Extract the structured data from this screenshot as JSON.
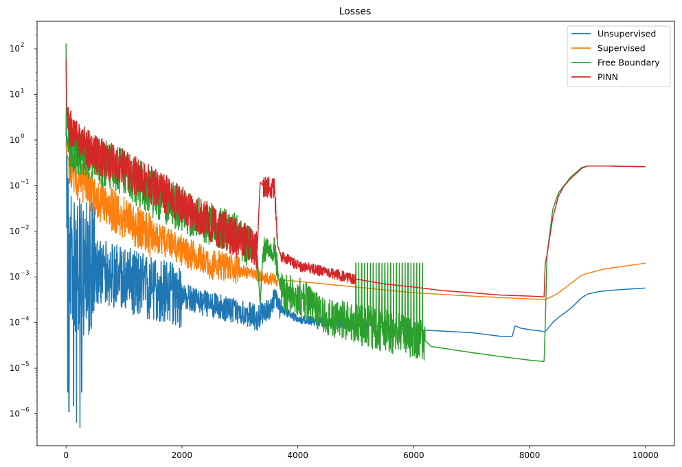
{
  "chart_data": {
    "type": "line",
    "title": "Losses",
    "xlabel": "",
    "ylabel": "",
    "xlim": [
      -500,
      10500
    ],
    "ylim": [
      2e-07,
      400
    ],
    "yscale": "log",
    "x_ticks": [
      0,
      2000,
      4000,
      6000,
      8000,
      10000
    ],
    "x_tick_labels": [
      "0",
      "2000",
      "4000",
      "6000",
      "8000",
      "10000"
    ],
    "y_ticks": [
      1e-06,
      1e-05,
      0.0001,
      0.001,
      0.01,
      0.1,
      1,
      10,
      100
    ],
    "y_tick_labels": [
      {
        "base": "10",
        "exp": "−6"
      },
      {
        "base": "10",
        "exp": "−5"
      },
      {
        "base": "10",
        "exp": "−4"
      },
      {
        "base": "10",
        "exp": "−3"
      },
      {
        "base": "10",
        "exp": "−2"
      },
      {
        "base": "10",
        "exp": "−1"
      },
      {
        "base": "10",
        "exp": "0"
      },
      {
        "base": "10",
        "exp": "1"
      },
      {
        "base": "10",
        "exp": "2"
      }
    ],
    "grid": false,
    "legend_position": "top-right",
    "series": [
      {
        "name": "Unsupervised",
        "color": "#1f77b4",
        "x": [
          0,
          10,
          30,
          60,
          100,
          200,
          300,
          500,
          800,
          1000,
          1500,
          2000,
          2500,
          3000,
          3300,
          3350,
          3500,
          3600,
          3700,
          4000,
          4500,
          5000,
          5500,
          6000,
          6500,
          7000,
          7500,
          7700,
          7750,
          7800,
          7850,
          8000,
          8200,
          8250,
          8270,
          8300,
          8400,
          8500,
          8700,
          8900,
          9000,
          9200,
          9500,
          9800,
          10000
        ],
        "y": [
          0.45,
          0.05,
          0.01,
          0.005,
          0.003,
          0.002,
          0.0018,
          0.0015,
          0.0012,
          0.001,
          0.0006,
          0.0004,
          0.00025,
          0.00018,
          0.00013,
          0.00015,
          0.0002,
          0.00035,
          0.0002,
          0.00012,
          0.0001,
          9e-05,
          8e-05,
          7e-05,
          6.5e-05,
          6e-05,
          5e-05,
          5e-05,
          8.5e-05,
          8e-05,
          7.5e-05,
          7e-05,
          6.5e-05,
          6.2e-05,
          6.5e-05,
          7e-05,
          0.0001,
          0.00013,
          0.0002,
          0.00035,
          0.00042,
          0.00048,
          0.00052,
          0.00055,
          0.00057
        ],
        "noise": {
          "ranges": [
            [
              0,
              500,
              3.2
            ],
            [
              500,
              2000,
              1.5
            ],
            [
              2000,
              3400,
              0.6
            ],
            [
              3400,
              3700,
              0.5
            ],
            [
              3700,
              5200,
              0.2
            ]
          ],
          "dips": [
            [
              30,
              3e-06
            ],
            [
              50,
              1.1e-06
            ],
            [
              130,
              1.5e-06
            ],
            [
              180,
              6.5e-07
            ],
            [
              240,
              5e-07
            ],
            [
              270,
              3e-06
            ]
          ]
        }
      },
      {
        "name": "Supervised",
        "color": "#ff7f0e",
        "x": [
          0,
          10,
          50,
          100,
          200,
          500,
          1000,
          1500,
          2000,
          2500,
          3000,
          3400,
          3600,
          3700,
          4000,
          5000,
          6000,
          7000,
          8000,
          8250,
          8300,
          8400,
          8500,
          8700,
          8900,
          9000,
          9300,
          9600,
          10000
        ],
        "y": [
          0.9,
          0.5,
          0.35,
          0.25,
          0.15,
          0.06,
          0.02,
          0.008,
          0.004,
          0.002,
          0.0014,
          0.001,
          0.0009,
          0.00085,
          0.0008,
          0.0006,
          0.00045,
          0.00038,
          0.00033,
          0.00032,
          0.00033,
          0.00038,
          0.00045,
          0.0007,
          0.0011,
          0.0012,
          0.0015,
          0.0017,
          0.002
        ],
        "noise": {
          "ranges": [
            [
              50,
              1500,
              1.0
            ],
            [
              1500,
              3000,
              0.7
            ],
            [
              3000,
              3650,
              0.3
            ]
          ],
          "dips": []
        }
      },
      {
        "name": "Free Boundary",
        "color": "#2ca02c",
        "x": [
          0,
          10,
          30,
          100,
          300,
          500,
          1000,
          1500,
          2000,
          2500,
          3000,
          3300,
          3350,
          3400,
          3600,
          3700,
          4000,
          4500,
          5000,
          5500,
          6000,
          6200,
          6300,
          7000,
          7500,
          8000,
          8250,
          8270,
          8300,
          8400,
          8500,
          8700,
          8900,
          9000,
          9300,
          9600,
          10000
        ],
        "y": [
          130,
          1.0,
          0.7,
          0.6,
          0.5,
          0.4,
          0.2,
          0.07,
          0.03,
          0.015,
          0.008,
          0.003,
          0.00025,
          0.004,
          0.004,
          0.0005,
          0.0004,
          0.00015,
          0.0001,
          7e-05,
          5e-05,
          4e-05,
          3e-05,
          2.2e-05,
          1.8e-05,
          1.5e-05,
          1.4e-05,
          9e-05,
          0.003,
          0.03,
          0.07,
          0.15,
          0.25,
          0.27,
          0.27,
          0.265,
          0.26
        ],
        "noise": {
          "ranges": [
            [
              30,
              2000,
              1.1
            ],
            [
              2000,
              3300,
              1.0
            ],
            [
              3400,
              3650,
              0.6
            ],
            [
              3700,
              5000,
              0.9
            ],
            [
              5000,
              6200,
              1.0
            ]
          ],
          "spikes": [
            [
              5000,
              6200,
              24,
              0.002
            ]
          ],
          "dips": []
        }
      },
      {
        "name": "PINN",
        "color": "#d62728",
        "x": [
          0,
          10,
          30,
          100,
          300,
          500,
          1000,
          1500,
          2000,
          2500,
          3000,
          3300,
          3350,
          3400,
          3600,
          3650,
          3700,
          4000,
          4500,
          5000,
          5500,
          6000,
          6500,
          7000,
          7500,
          8000,
          8200,
          8250,
          8270,
          8300,
          8400,
          8500,
          8600,
          8700,
          8900,
          9000,
          9300,
          9600,
          10000
        ],
        "y": [
          60,
          6,
          3,
          1.5,
          0.8,
          0.5,
          0.25,
          0.1,
          0.04,
          0.015,
          0.007,
          0.004,
          0.12,
          0.1,
          0.09,
          0.005,
          0.003,
          0.0018,
          0.0013,
          0.0009,
          0.0007,
          0.0006,
          0.0005,
          0.00045,
          0.0004,
          0.00038,
          0.00037,
          0.00036,
          0.002,
          0.003,
          0.02,
          0.06,
          0.1,
          0.14,
          0.24,
          0.27,
          0.27,
          0.265,
          0.26
        ],
        "noise": {
          "ranges": [
            [
              30,
              3300,
              0.9
            ],
            [
              3400,
              3650,
              0.5
            ],
            [
              3700,
              5000,
              0.25
            ]
          ],
          "dips": []
        }
      }
    ]
  }
}
